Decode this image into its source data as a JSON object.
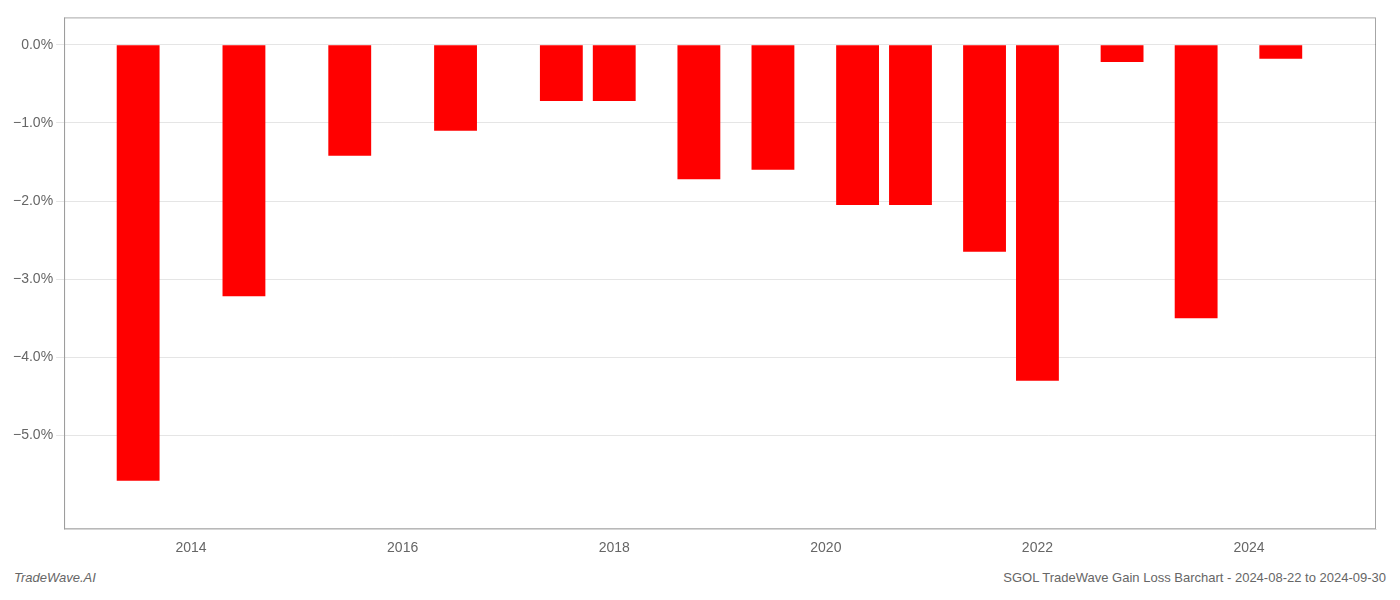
{
  "chart_data": {
    "type": "bar",
    "x": [
      2013.5,
      2014.5,
      2015.5,
      2016.5,
      2017.5,
      2018.0,
      2018.8,
      2019.5,
      2020.3,
      2020.8,
      2021.5,
      2022.0,
      2022.8,
      2023.5,
      2024.3
    ],
    "values": [
      -5.58,
      -3.22,
      -1.42,
      -1.1,
      -0.72,
      -0.72,
      -1.72,
      -1.6,
      -2.05,
      -2.05,
      -2.65,
      -4.3,
      -0.22,
      -3.5,
      -0.18
    ],
    "color": "#ff0000",
    "xlim": [
      2012.8,
      2025.2
    ],
    "xticks": [
      2014,
      2016,
      2018,
      2020,
      2022,
      2024
    ],
    "ylim": [
      -6.2,
      0.35
    ],
    "yticks": [
      {
        "value": 0.0,
        "label": "0.0%"
      },
      {
        "value": -1.0,
        "label": "−1.0%"
      },
      {
        "value": -2.0,
        "label": "−2.0%"
      },
      {
        "value": -3.0,
        "label": "−3.0%"
      },
      {
        "value": -4.0,
        "label": "−4.0%"
      },
      {
        "value": -5.0,
        "label": "−5.0%"
      }
    ],
    "grid": true,
    "annotations": [
      "TradeWave.AI",
      "SGOL TradeWave Gain Loss Barchart - 2024-08-22 to 2024-09-30"
    ]
  }
}
